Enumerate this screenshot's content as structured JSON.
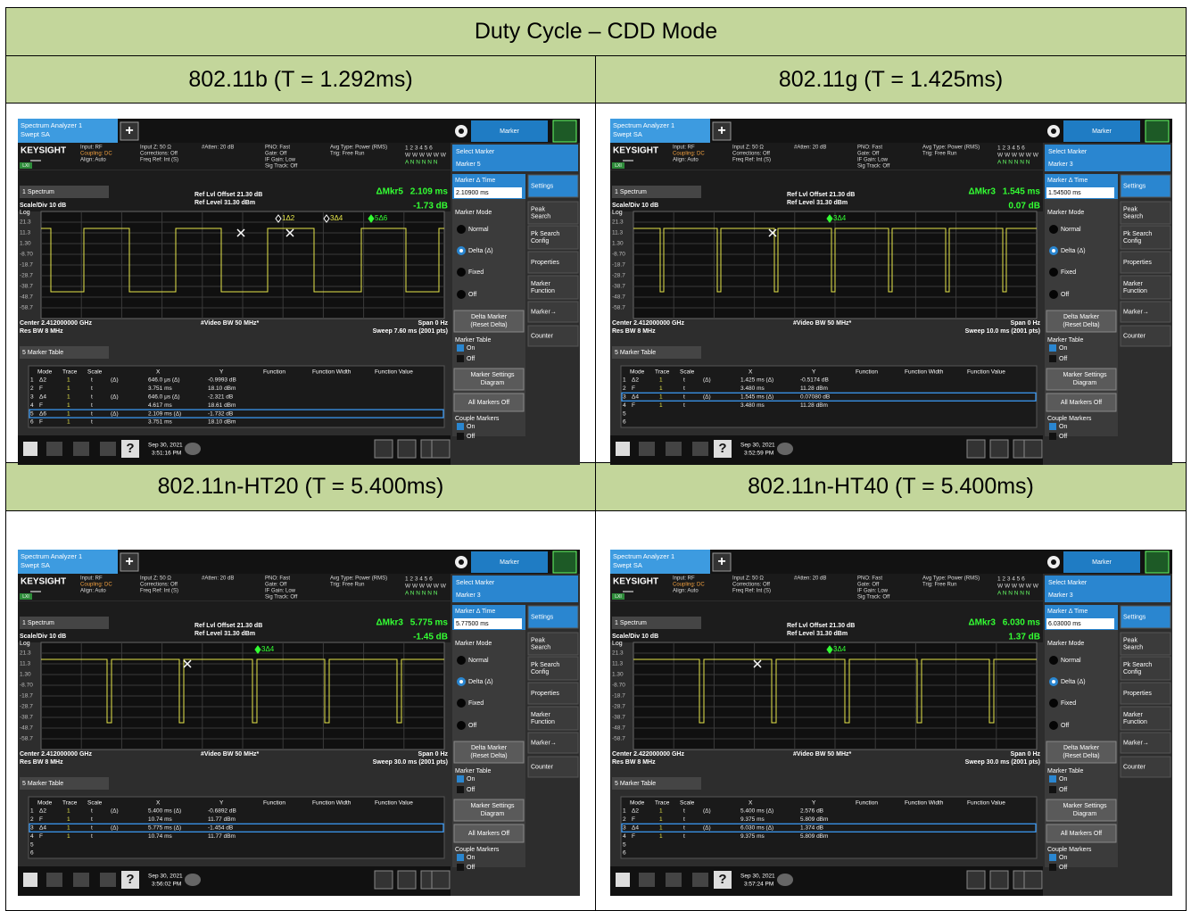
{
  "title": "Duty Cycle – CDD Mode",
  "analyzer_ui": {
    "tab": [
      "Spectrum Analyzer 1",
      "Swept SA"
    ],
    "plus": "+",
    "menu": "Marker",
    "brand": "KEYSIGHT",
    "info": [
      [
        "Input: RF",
        "Coupling: DC",
        "Align: Auto"
      ],
      [
        "Input Z: 50 Ω",
        "Corrections: Off",
        "Freq Ref: Int (S)"
      ],
      [
        "#Atten: 20 dB"
      ],
      [
        "PNO: Fast",
        "Gate: Off",
        "IF Gain: Low",
        "Sig Track: Off"
      ],
      [
        "Avg Type: Power (RMS)",
        "Trig: Free Run"
      ]
    ],
    "trace_status": [
      "1 2 3 4 5 6",
      "W W W W W W",
      "A N N N N N"
    ],
    "lxi": "LXI",
    "select_marker": "Select Marker",
    "spectrum_tab": "1 Spectrum",
    "ref_offset": "Ref Lvl Offset 21.30 dB",
    "ref_level": "Ref Level 31.30 dBm",
    "scale": "Scale/Div 10 dB",
    "log": "Log",
    "ylabels": [
      "21.3",
      "11.3",
      "1.30",
      "-8.70",
      "-18.7",
      "-28.7",
      "-38.7",
      "-48.7",
      "-58.7"
    ],
    "vbw": "#Video BW 50 MHz*",
    "span": "Span 0 Hz",
    "rbw": "Res BW 8 MHz",
    "table_tab": "5 Marker Table",
    "table_headers": [
      "Mode",
      "Trace",
      "Scale",
      "X",
      "Y",
      "Function",
      "Function Width",
      "Function Value"
    ],
    "side": {
      "delta_time": "Marker Δ Time",
      "mode": "Marker Mode",
      "modes": [
        "Normal",
        "Delta (Δ)",
        "Fixed",
        "Off"
      ],
      "delta_marker": [
        "Delta Marker",
        "(Reset Delta)"
      ],
      "table": "Marker Table",
      "on": "On",
      "off": "Off",
      "settings_diagram": [
        "Marker Settings",
        "Diagram"
      ],
      "all_off": "All Markers Off",
      "couple": "Couple Markers"
    },
    "buttons": [
      [
        "Settings"
      ],
      [
        "Peak",
        "Search"
      ],
      [
        "Pk Search",
        "Config"
      ],
      [
        "Properties"
      ],
      [
        "Marker",
        "Function"
      ],
      [
        "Marker→"
      ],
      [
        "Counter"
      ]
    ],
    "help": "?"
  },
  "panels": [
    {
      "heading": "802.11b (T = 1.292ms)",
      "select_marker": "Marker 5",
      "delta_time": "2.10900 ms",
      "delta_marker": "ΔMkr5",
      "delta_x": "2.109 ms",
      "delta_y": "-1.73 dB",
      "center": "Center 2.412000000 GHz",
      "sweep": "Sweep 7.60 ms (2001 pts)",
      "date": "Sep 30, 2021",
      "time": "3:51:16 PM",
      "marker_flags": [
        "1Δ2",
        "3Δ4",
        "5Δ6"
      ],
      "selected_row": "5",
      "rows": [
        [
          "1",
          "Δ2",
          "1",
          "t",
          "(Δ)",
          "646.0 μs (Δ)",
          "-0.9993 dB"
        ],
        [
          "2",
          "F",
          "1",
          "t",
          "",
          "3.751 ms",
          "18.10 dBm"
        ],
        [
          "3",
          "Δ4",
          "1",
          "t",
          "(Δ)",
          "646.0 μs (Δ)",
          "-2.321 dB"
        ],
        [
          "4",
          "F",
          "1",
          "t",
          "",
          "4.617 ms",
          "18.61 dBm"
        ],
        [
          "5",
          "Δ6",
          "1",
          "t",
          "(Δ)",
          "2.109 ms (Δ)",
          "-1.732 dB"
        ],
        [
          "6",
          "F",
          "1",
          "t",
          "",
          "3.751 ms",
          "18.10 dBm"
        ]
      ]
    },
    {
      "heading": "802.11g (T = 1.425ms)",
      "select_marker": "Marker 3",
      "delta_time": "1.54500 ms",
      "delta_marker": "ΔMkr3",
      "delta_x": "1.545 ms",
      "delta_y": "0.07 dB",
      "center": "Center 2.412000000 GHz",
      "sweep": "Sweep 10.0 ms (2001 pts)",
      "date": "Sep 30, 2021",
      "time": "3:52:59 PM",
      "marker_flags": [
        "3Δ4"
      ],
      "selected_row": "3",
      "rows": [
        [
          "1",
          "Δ2",
          "1",
          "t",
          "(Δ)",
          "1.425 ms (Δ)",
          "-0.5174 dB"
        ],
        [
          "2",
          "F",
          "1",
          "t",
          "",
          "3.480 ms",
          "11.28 dBm"
        ],
        [
          "3",
          "Δ4",
          "1",
          "t",
          "(Δ)",
          "1.545 ms (Δ)",
          "0.07080 dB"
        ],
        [
          "4",
          "F",
          "1",
          "t",
          "",
          "3.480 ms",
          "11.28 dBm"
        ],
        [
          "5"
        ],
        [
          "6"
        ]
      ]
    },
    {
      "heading": "802.11n-HT20 (T = 5.400ms)",
      "select_marker": "Marker 3",
      "delta_time": "5.77500 ms",
      "delta_marker": "ΔMkr3",
      "delta_x": "5.775 ms",
      "delta_y": "-1.45 dB",
      "center": "Center 2.412000000 GHz",
      "sweep": "Sweep 30.0 ms (2001 pts)",
      "date": "Sep 30, 2021",
      "time": "3:56:02 PM",
      "marker_flags": [
        "3Δ4"
      ],
      "selected_row": "3",
      "rows": [
        [
          "1",
          "Δ2",
          "1",
          "t",
          "(Δ)",
          "5.400 ms (Δ)",
          "-0.6892 dB"
        ],
        [
          "2",
          "F",
          "1",
          "t",
          "",
          "10.74 ms",
          "11.77 dBm"
        ],
        [
          "3",
          "Δ4",
          "1",
          "t",
          "(Δ)",
          "5.775 ms (Δ)",
          "-1.454 dB"
        ],
        [
          "4",
          "F",
          "1",
          "t",
          "",
          "10.74 ms",
          "11.77 dBm"
        ],
        [
          "5"
        ],
        [
          "6"
        ]
      ]
    },
    {
      "heading": "802.11n-HT40 (T = 5.400ms)",
      "select_marker": "Marker 3",
      "delta_time": "6.03000 ms",
      "delta_marker": "ΔMkr3",
      "delta_x": "6.030 ms",
      "delta_y": "1.37 dB",
      "center": "Center 2.422000000 GHz",
      "sweep": "Sweep 30.0 ms (2001 pts)",
      "date": "Sep 30, 2021",
      "time": "3:57:24 PM",
      "marker_flags": [
        "3Δ4"
      ],
      "selected_row": "3",
      "rows": [
        [
          "1",
          "Δ2",
          "1",
          "t",
          "(Δ)",
          "5.400 ms (Δ)",
          "2.576 dB"
        ],
        [
          "2",
          "F",
          "1",
          "t",
          "",
          "9.375 ms",
          "5.809 dBm"
        ],
        [
          "3",
          "Δ4",
          "1",
          "t",
          "(Δ)",
          "6.030 ms (Δ)",
          "1.374 dB"
        ],
        [
          "4",
          "F",
          "1",
          "t",
          "",
          "9.375 ms",
          "5.809 dBm"
        ],
        [
          "5"
        ],
        [
          "6"
        ]
      ]
    }
  ]
}
